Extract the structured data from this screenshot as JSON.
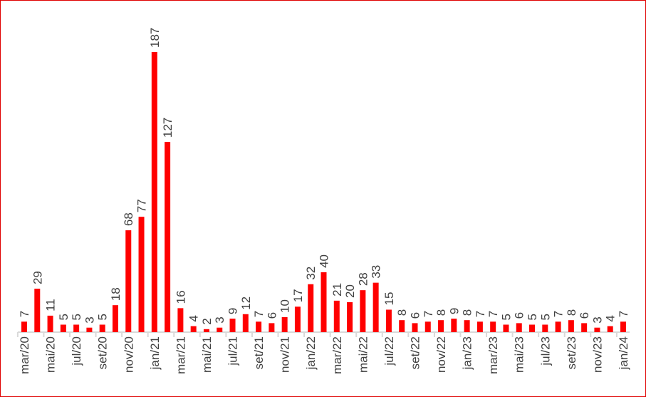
{
  "chart_data": {
    "type": "bar",
    "categories": [
      "mar/20",
      "abr/20",
      "mai/20",
      "jun/20",
      "jul/20",
      "ago/20",
      "set/20",
      "out/20",
      "nov/20",
      "dez/20",
      "jan/21",
      "fev/21",
      "mar/21",
      "abr/21",
      "mai/21",
      "jun/21",
      "jul/21",
      "ago/21",
      "set/21",
      "out/21",
      "nov/21",
      "dez/21",
      "jan/22",
      "fev/22",
      "mar/22",
      "abr/22",
      "mai/22",
      "jun/22",
      "jul/22",
      "ago/22",
      "set/22",
      "out/22",
      "nov/22",
      "dez/22",
      "jan/23",
      "fev/23",
      "mar/23",
      "abr/23",
      "mai/23",
      "jun/23",
      "jul/23",
      "ago/23",
      "set/23",
      "out/23",
      "nov/23",
      "dez/23",
      "jan/24"
    ],
    "tick_labels": [
      "mar/20",
      "mai/20",
      "jul/20",
      "set/20",
      "nov/20",
      "jan/21",
      "mar/21",
      "mai/21",
      "jul/21",
      "set/21",
      "nov/21",
      "jan/22",
      "mar/22",
      "mai/22",
      "jul/22",
      "set/22",
      "nov/22",
      "jan/23",
      "mar/23",
      "mai/23",
      "jul/23",
      "set/23",
      "nov/23",
      "jan/24"
    ],
    "values": [
      7,
      29,
      11,
      5,
      5,
      3,
      5,
      18,
      68,
      77,
      187,
      127,
      16,
      4,
      2,
      3,
      9,
      12,
      7,
      6,
      10,
      17,
      32,
      40,
      21,
      20,
      28,
      33,
      15,
      8,
      6,
      7,
      8,
      9,
      8,
      7,
      7,
      5,
      6,
      5,
      5,
      7,
      8,
      6,
      3,
      4,
      7
    ],
    "ylim": [
      0,
      187
    ],
    "bar_color": "#ff0000",
    "border_color": "#e00000",
    "grid": false,
    "data_labels": true
  }
}
